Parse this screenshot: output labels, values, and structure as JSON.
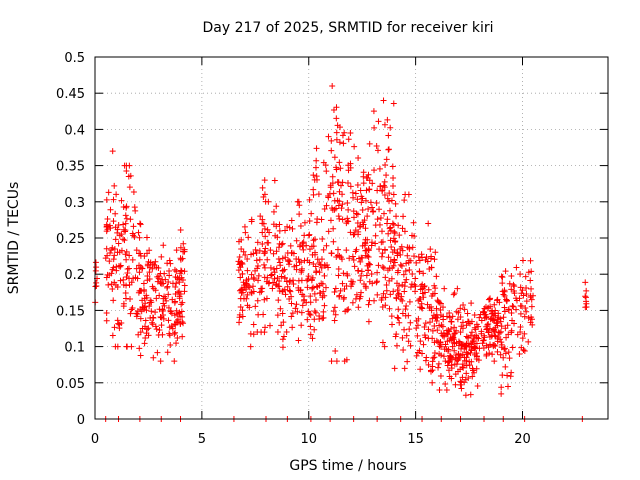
{
  "chart_data": {
    "type": "scatter",
    "title": "Day 217 of 2025, SRMTID for receiver kiri",
    "xlabel": "GPS time / hours",
    "ylabel": "SRMTID / TECUs",
    "xlim": [
      0,
      24
    ],
    "ylim": [
      0,
      0.5
    ],
    "x_ticks": [
      0,
      5,
      10,
      15,
      20
    ],
    "x_tick_labels": [
      "0",
      "5",
      "10",
      "15",
      "20"
    ],
    "y_ticks": [
      0,
      0.05,
      0.1,
      0.15,
      0.2,
      0.25,
      0.3,
      0.35,
      0.4,
      0.45,
      0.5
    ],
    "y_tick_labels": [
      "0",
      "0.05",
      "0.1",
      "0.15",
      "0.2",
      "0.25",
      "0.3",
      "0.35",
      "0.4",
      "0.45",
      "0.5"
    ],
    "grid": true,
    "marker": "plus",
    "color": "#ff0000",
    "clusters": [
      {
        "x0": 0.0,
        "x1": 0.1,
        "ymin": 0.14,
        "ymax": 0.22,
        "n": 8
      },
      {
        "x0": 0.5,
        "x1": 1.1,
        "ymin": 0.1,
        "ymax": 0.37,
        "n": 55
      },
      {
        "x0": 1.1,
        "x1": 1.9,
        "ymin": 0.1,
        "ymax": 0.35,
        "n": 70
      },
      {
        "x0": 1.9,
        "x1": 2.9,
        "ymin": 0.08,
        "ymax": 0.27,
        "n": 90
      },
      {
        "x0": 2.9,
        "x1": 4.2,
        "ymin": 0.08,
        "ymax": 0.24,
        "n": 110
      },
      {
        "x0": 4.0,
        "x1": 4.2,
        "ymin": 0.18,
        "ymax": 0.28,
        "n": 10
      },
      {
        "x0": 6.7,
        "x1": 7.7,
        "ymin": 0.1,
        "ymax": 0.28,
        "n": 80
      },
      {
        "x0": 7.7,
        "x1": 8.7,
        "ymin": 0.12,
        "ymax": 0.33,
        "n": 80
      },
      {
        "x0": 8.7,
        "x1": 10.0,
        "ymin": 0.09,
        "ymax": 0.3,
        "n": 100
      },
      {
        "x0": 10.0,
        "x1": 11.0,
        "ymin": 0.1,
        "ymax": 0.39,
        "n": 90
      },
      {
        "x0": 11.0,
        "x1": 12.0,
        "ymin": 0.08,
        "ymax": 0.46,
        "n": 100
      },
      {
        "x0": 12.0,
        "x1": 13.0,
        "ymin": 0.1,
        "ymax": 0.38,
        "n": 100
      },
      {
        "x0": 13.0,
        "x1": 14.0,
        "ymin": 0.1,
        "ymax": 0.44,
        "n": 100
      },
      {
        "x0": 14.0,
        "x1": 15.0,
        "ymin": 0.07,
        "ymax": 0.31,
        "n": 90
      },
      {
        "x0": 15.0,
        "x1": 16.0,
        "ymin": 0.05,
        "ymax": 0.27,
        "n": 90
      },
      {
        "x0": 16.0,
        "x1": 17.0,
        "ymin": 0.04,
        "ymax": 0.18,
        "n": 100
      },
      {
        "x0": 17.0,
        "x1": 18.0,
        "ymin": 0.03,
        "ymax": 0.16,
        "n": 110
      },
      {
        "x0": 18.0,
        "x1": 19.0,
        "ymin": 0.08,
        "ymax": 0.18,
        "n": 90
      },
      {
        "x0": 19.0,
        "x1": 19.6,
        "ymin": 0.03,
        "ymax": 0.24,
        "n": 50
      },
      {
        "x0": 19.6,
        "x1": 20.5,
        "ymin": 0.08,
        "ymax": 0.23,
        "n": 50
      },
      {
        "x0": 22.9,
        "x1": 23.1,
        "ymin": 0.14,
        "ymax": 0.19,
        "n": 8
      }
    ],
    "baseline_points_x": [
      0.5,
      1.1,
      2.1,
      3.1,
      4.0,
      6.5,
      8.0,
      9.0,
      10.1,
      11.0,
      12.1,
      13.2,
      14.3,
      15.3,
      16.2,
      17.1,
      18.2,
      19.1,
      20.1,
      22.8
    ]
  }
}
